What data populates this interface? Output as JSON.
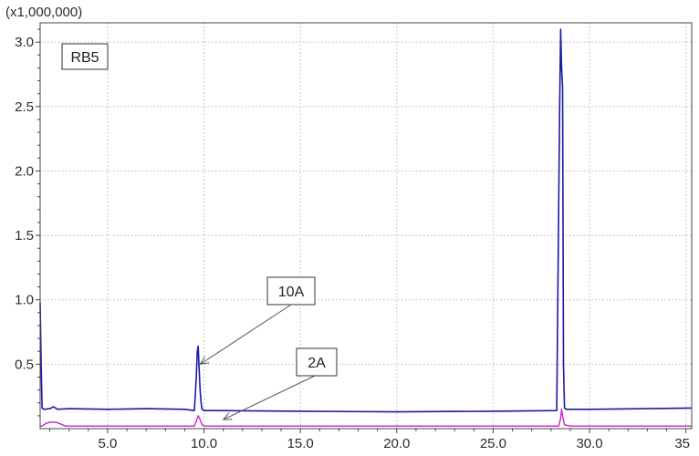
{
  "chart_data": {
    "type": "line",
    "title": "",
    "xlabel": "",
    "ylabel": "",
    "y_multiplier_label": "(x1,000,000)",
    "xlim": [
      1.5,
      35.3
    ],
    "ylim": [
      0.0,
      3.15
    ],
    "x_ticks": [
      5.0,
      10.0,
      15.0,
      20.0,
      25.0,
      30.0,
      35.0
    ],
    "x_tick_labels": [
      "5.0",
      "10.0",
      "15.0",
      "20.0",
      "25.0",
      "30.0",
      "35"
    ],
    "y_ticks": [
      0.5,
      1.0,
      1.5,
      2.0,
      2.5,
      3.0
    ],
    "y_tick_labels": [
      "0.5",
      "1.0",
      "1.5",
      "2.0",
      "2.5",
      "3.0"
    ],
    "grid": true,
    "sample_label": "RB5",
    "annotations": [
      {
        "text": "10A",
        "points_to": [
          9.8,
          0.5
        ]
      },
      {
        "text": "2A",
        "points_to": [
          11.0,
          0.07
        ]
      }
    ],
    "series": [
      {
        "color": "#1a1aa6",
        "x": [
          1.5,
          1.55,
          1.6,
          1.7,
          2.0,
          2.2,
          2.4,
          3.0,
          5.0,
          7.0,
          9.0,
          9.5,
          9.6,
          9.65,
          9.7,
          9.75,
          9.8,
          9.85,
          9.9,
          10.0,
          10.5,
          15.0,
          20.0,
          25.0,
          28.3,
          28.45,
          28.5,
          28.55,
          28.6,
          28.65,
          28.7,
          28.8,
          29.0,
          30.0,
          33.0,
          35.3
        ],
        "y": [
          0.98,
          0.5,
          0.16,
          0.15,
          0.155,
          0.17,
          0.15,
          0.155,
          0.15,
          0.155,
          0.15,
          0.14,
          0.4,
          0.6,
          0.64,
          0.45,
          0.3,
          0.2,
          0.15,
          0.14,
          0.14,
          0.135,
          0.13,
          0.135,
          0.14,
          2.5,
          3.1,
          2.8,
          2.65,
          0.5,
          0.16,
          0.15,
          0.15,
          0.15,
          0.155,
          0.16
        ]
      },
      {
        "color": "#cc22cc",
        "x": [
          1.5,
          1.6,
          1.8,
          2.0,
          2.3,
          2.5,
          2.8,
          3.0,
          5.0,
          9.0,
          9.5,
          9.6,
          9.7,
          9.8,
          9.9,
          10.0,
          15.0,
          20.0,
          25.0,
          28.4,
          28.5,
          28.55,
          28.6,
          28.7,
          29.0,
          33.0,
          35.3
        ],
        "y": [
          0.02,
          0.02,
          0.04,
          0.05,
          0.05,
          0.04,
          0.02,
          0.02,
          0.02,
          0.02,
          0.02,
          0.06,
          0.1,
          0.07,
          0.03,
          0.02,
          0.02,
          0.02,
          0.02,
          0.02,
          0.08,
          0.15,
          0.1,
          0.03,
          0.02,
          0.02,
          0.02
        ]
      }
    ]
  }
}
